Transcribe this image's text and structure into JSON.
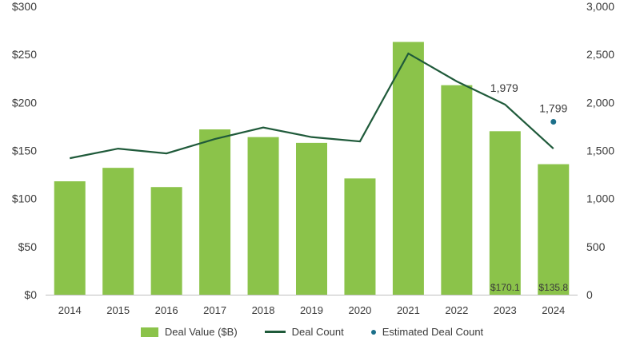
{
  "chart_data": {
    "type": "bar",
    "categories": [
      "2014",
      "2015",
      "2016",
      "2017",
      "2018",
      "2019",
      "2020",
      "2021",
      "2022",
      "2023",
      "2024"
    ],
    "series": [
      {
        "name": "Deal Value ($B)",
        "type": "bar",
        "axis": "left",
        "values": [
          118,
          132,
          112,
          172,
          164,
          158,
          121,
          263,
          218,
          170.1,
          135.8
        ],
        "data_labels": {
          "9": "$170.1",
          "10": "$135.8"
        }
      },
      {
        "name": "Deal Count",
        "type": "line",
        "axis": "right",
        "values": [
          1420,
          1520,
          1470,
          1620,
          1740,
          1640,
          1595,
          2510,
          2220,
          1979,
          1520
        ],
        "data_labels": {
          "9": "1,979"
        }
      },
      {
        "name": "Estimated Deal Count",
        "type": "scatter",
        "axis": "right",
        "points": [
          {
            "x": "2024",
            "y": 1799
          }
        ],
        "data_labels": {
          "0": "1,799"
        }
      }
    ],
    "y_left": {
      "ylim": [
        0,
        300
      ],
      "ticks": [
        0,
        50,
        100,
        150,
        200,
        250,
        300
      ],
      "tick_labels": [
        "$0",
        "$50",
        "$100",
        "$150",
        "$200",
        "$250",
        "$300"
      ]
    },
    "y_right": {
      "ylim": [
        0,
        3000
      ],
      "ticks": [
        0,
        500,
        1000,
        1500,
        2000,
        2500,
        3000
      ],
      "tick_labels": [
        "0",
        "500",
        "1,000",
        "1,500",
        "2,000",
        "2,500",
        "3,000"
      ]
    },
    "grid": false,
    "legend_position": "bottom",
    "colors": {
      "bar": "#8bc34a",
      "line": "#1f5a3a",
      "dot": "#1b6f8a"
    }
  }
}
